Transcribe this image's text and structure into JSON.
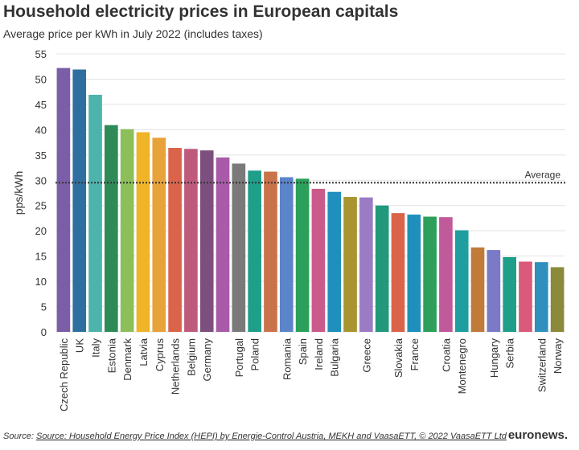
{
  "chart_data": {
    "type": "bar",
    "title": "Household electricity prices in European capitals",
    "subtitle": "Average price per kWh in July 2022 (includes taxes)",
    "y_label": "pps/kWh",
    "categories": [
      "Czech Republic",
      "UK",
      "Italy",
      "Estonia",
      "Denmark",
      "Latvia",
      "Cyprus",
      "Netherlands",
      "Belgium",
      "Germany",
      null,
      "Portugal",
      "Poland",
      null,
      "Romania",
      "Spain",
      "Ireland",
      "Bulgaria",
      null,
      "Greece",
      null,
      "Slovakia",
      "France",
      null,
      "Croatia",
      "Montenegro",
      null,
      "Hungary",
      "Serbia",
      null,
      "Switzerland",
      "Norway"
    ],
    "values": [
      52.2,
      51.9,
      46.9,
      40.9,
      40.1,
      39.5,
      38.4,
      36.4,
      36.2,
      35.9,
      34.5,
      33.3,
      31.9,
      31.7,
      30.6,
      30.3,
      28.3,
      27.7,
      26.7,
      26.6,
      25.0,
      23.5,
      23.2,
      22.8,
      22.7,
      20.1,
      16.7,
      16.2,
      14.8,
      13.9,
      13.8,
      12.8
    ],
    "colors": [
      "#7b5ea7",
      "#2f6f9f",
      "#4db3ad",
      "#2e8b57",
      "#8cbf5a",
      "#f0b429",
      "#e8a23a",
      "#d9644a",
      "#c05a7c",
      "#7d4f7e",
      "#a95aa8",
      "#7a7a7a",
      "#1f9e89",
      "#c9734a",
      "#5b84c9",
      "#2ca05a",
      "#c95a8a",
      "#1f8fbd",
      "#a89530",
      "#9b7cc4",
      "#21997a",
      "#d9644a",
      "#1f8fbd",
      "#2ca05a",
      "#c05a9a",
      "#1e9e9e",
      "#c07a3a",
      "#7a7ac9",
      "#1f9e89",
      "#d95a7a",
      "#2f8fbd",
      "#8a8a3a"
    ],
    "ylim": [
      0,
      55
    ],
    "yticks": [
      0,
      5,
      10,
      15,
      20,
      25,
      30,
      35,
      40,
      45,
      50,
      55
    ],
    "grid": true,
    "average": {
      "label": "Average",
      "value": 29.5
    },
    "source_prefix": "Source:",
    "source": "Source: Household Energy Price Index (HEPI) by Energie-Control Austria, MEKH and VaasaETT, © 2022 VaasaETT Ltd",
    "logo": "euronews."
  }
}
